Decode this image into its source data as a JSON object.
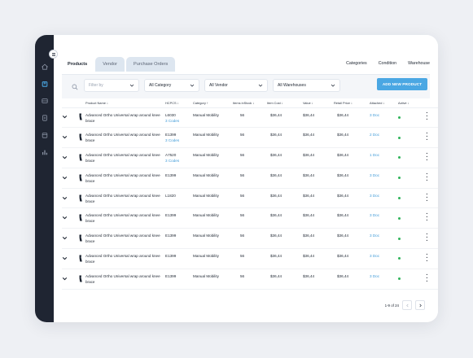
{
  "tabs": [
    {
      "label": "Products",
      "active": true
    },
    {
      "label": "Vendor",
      "active": false
    },
    {
      "label": "Purchase Orders",
      "active": false
    }
  ],
  "top_links": [
    "Categories",
    "Condition",
    "Warehouse"
  ],
  "filters": {
    "filter_by_placeholder": "Filter by",
    "category": "All Category",
    "vendor": "All Vendor",
    "warehouse": "All Warehouses",
    "add_button": "ADD NEW PRODUCT"
  },
  "table": {
    "columns": {
      "product": "Product Name",
      "hcpcs": "HCPCS",
      "category": "Category",
      "instock": "Items inStock",
      "cost": "Item Cost",
      "value": "Value",
      "retail": "Retail Price",
      "attached": "Attached",
      "active": "Active"
    },
    "rows": [
      {
        "name": "Advanced Ortho Universal wrap around knee brace",
        "hcpcs": "L6030",
        "codes": "3 Codes",
        "category": "Manual Mobility",
        "instock": "56",
        "cost": "$36,44",
        "value": "$36,44",
        "retail": "$36,44",
        "attached": "3 Doc"
      },
      {
        "name": "Advanced Ortho Universal wrap around knee brace",
        "hcpcs": "E1399",
        "codes": "3 Codes",
        "category": "Manual Mobility",
        "instock": "56",
        "cost": "$36,44",
        "value": "$36,44",
        "retail": "$36,44",
        "attached": "2 Doc"
      },
      {
        "name": "Advanced Ortho Universal wrap around knee brace",
        "hcpcs": "A7520",
        "codes": "3 Codes",
        "category": "Manual Mobility",
        "instock": "56",
        "cost": "$36,44",
        "value": "$36,44",
        "retail": "$36,44",
        "attached": "1 Doc"
      },
      {
        "name": "Advanced Ortho Universal wrap around knee brace",
        "hcpcs": "E1399",
        "codes": "",
        "category": "Manual Mobility",
        "instock": "56",
        "cost": "$36,44",
        "value": "$36,44",
        "retail": "$36,44",
        "attached": "3 Doc"
      },
      {
        "name": "Advanced Ortho Universal wrap around knee brace",
        "hcpcs": "L1820",
        "codes": "",
        "category": "Manual Mobility",
        "instock": "56",
        "cost": "$36,44",
        "value": "$36,44",
        "retail": "$36,44",
        "attached": "3 Doc"
      },
      {
        "name": "Advanced Ortho Universal wrap around knee brace",
        "hcpcs": "E1399",
        "codes": "",
        "category": "Manual Mobility",
        "instock": "56",
        "cost": "$36,44",
        "value": "$36,44",
        "retail": "$36,44",
        "attached": "3 Doc"
      },
      {
        "name": "Advanced Ortho Universal wrap around knee brace",
        "hcpcs": "E1399",
        "codes": "",
        "category": "Manual Mobility",
        "instock": "56",
        "cost": "$36,44",
        "value": "$36,44",
        "retail": "$36,44",
        "attached": "3 Doc"
      },
      {
        "name": "Advanced Ortho Universal wrap around knee brace",
        "hcpcs": "E1399",
        "codes": "",
        "category": "Manual Mobility",
        "instock": "56",
        "cost": "$36,44",
        "value": "$36,44",
        "retail": "$36,44",
        "attached": "3 Doc"
      },
      {
        "name": "Advanced Ortho Universal wrap around knee brace",
        "hcpcs": "E1399",
        "codes": "",
        "category": "Manual Mobility",
        "instock": "56",
        "cost": "$36,44",
        "value": "$36,44",
        "retail": "$36,44",
        "attached": "3 Doc"
      }
    ]
  },
  "pagination": {
    "label": "1-9 of 24"
  },
  "colors": {
    "sidebar": "#1f2532",
    "accent": "#4aa7e3",
    "link": "#3f9bd8",
    "active_dot": "#2fb45a",
    "tab_inactive": "#dde6f0"
  },
  "icons": [
    "home-icon",
    "box-icon",
    "inbox-icon",
    "document-icon",
    "calendar-icon",
    "chart-icon",
    "menu-toggle-icon",
    "search-icon",
    "chevron-down-icon",
    "kebab-icon"
  ]
}
